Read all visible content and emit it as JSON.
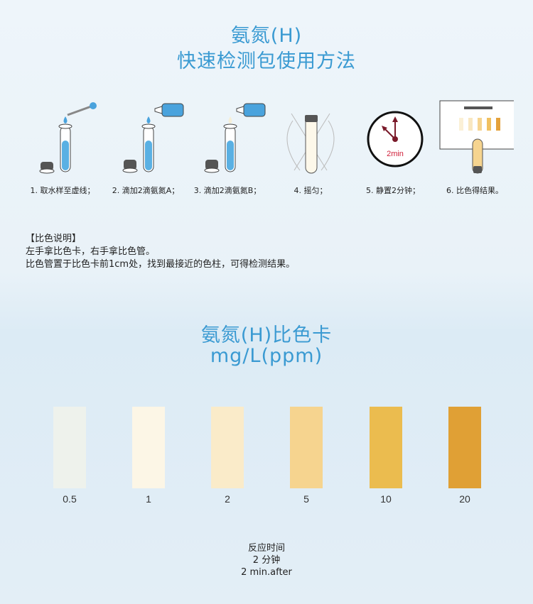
{
  "header": {
    "title_line1": "氨氮(H)",
    "title_line2": "快速检测包使用方法"
  },
  "steps": [
    {
      "label": "1. 取水样至虚线；",
      "icon": "test-tube-dropper-icon"
    },
    {
      "label": "2. 滴加2滴氨氮A；",
      "icon": "reagent-bottle-a-icon"
    },
    {
      "label": "3. 滴加2滴氨氮B；",
      "icon": "reagent-bottle-b-icon"
    },
    {
      "label": "4. 摇匀；",
      "icon": "shake-tube-icon"
    },
    {
      "label": "5. 静置2分钟；",
      "icon": "clock-icon",
      "clock_text": "2min"
    },
    {
      "label": "6. 比色得结果。",
      "icon": "color-card-compare-icon"
    }
  ],
  "instructions": {
    "heading": "【比色说明】",
    "line1": "左手拿比色卡，右手拿比色管。",
    "line2": "比色管置于比色卡前1cm处，找到最接近的色柱，可得检测结果。"
  },
  "color_card": {
    "title_line1": "氨氮(H)比色卡",
    "title_line2": "mg/L(ppm)",
    "swatches": [
      {
        "value": "0.5",
        "color": "#eef2ec"
      },
      {
        "value": "1",
        "color": "#fcf6e6"
      },
      {
        "value": "2",
        "color": "#faebc9"
      },
      {
        "value": "5",
        "color": "#f6d48f"
      },
      {
        "value": "10",
        "color": "#ebbc4f"
      },
      {
        "value": "20",
        "color": "#e0a035"
      }
    ]
  },
  "reaction": {
    "line1": "反应时间",
    "line2": "2 分钟",
    "line3": "2 min.after"
  },
  "colors": {
    "accent": "#3a9ad2"
  }
}
